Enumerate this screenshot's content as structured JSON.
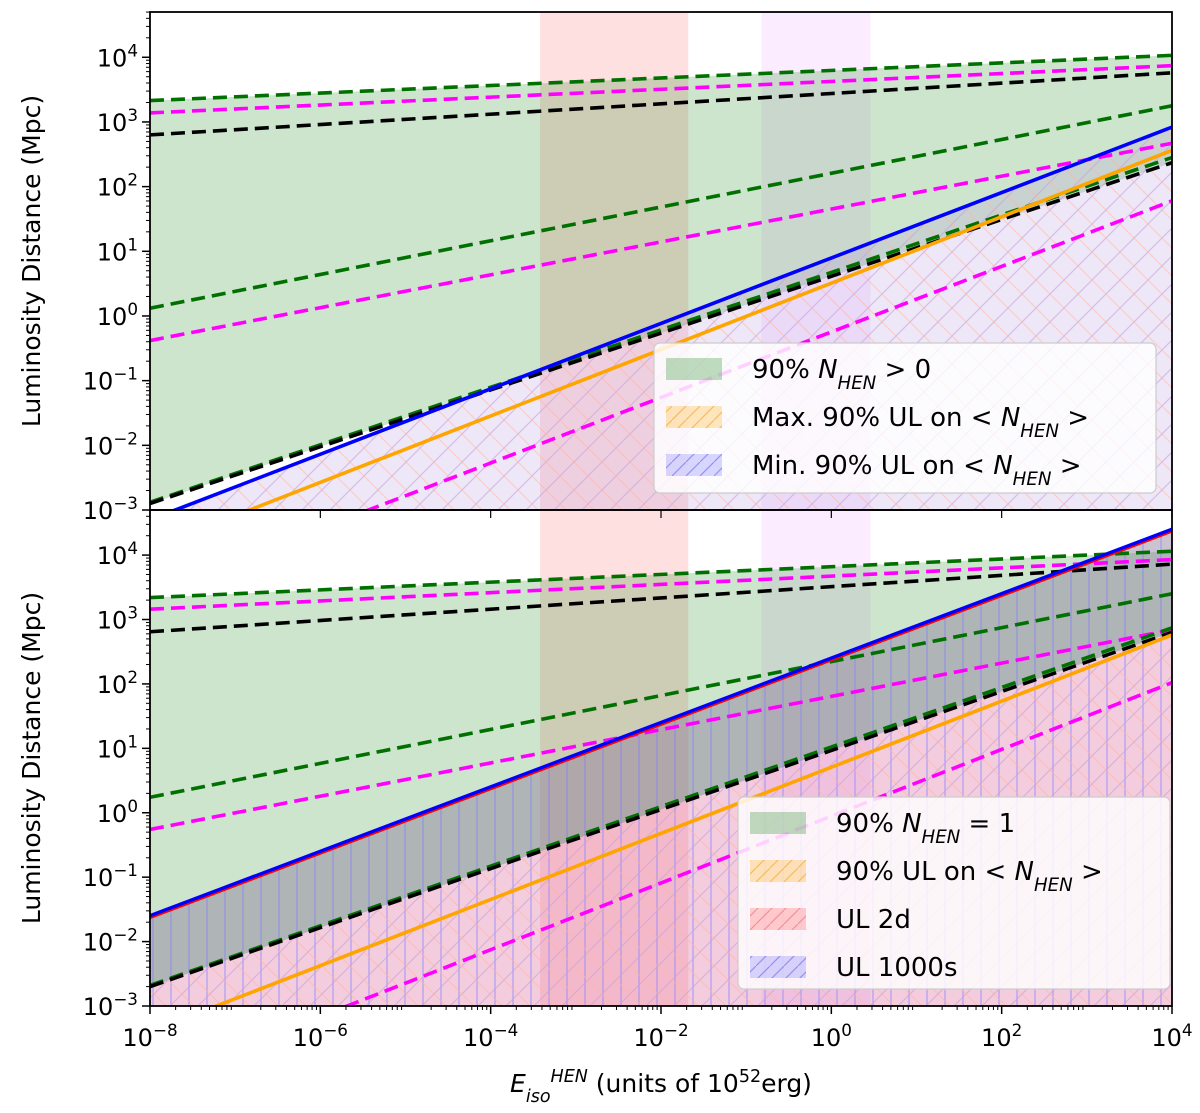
{
  "chart_data": {
    "type": "line",
    "shared": {
      "xlabel": {
        "main": "E",
        "sub": "iso",
        "sup": "HEN",
        "rest": " (units of 10",
        "rest_sup": "52",
        "rest_end": "erg)"
      },
      "xscale": "log",
      "xlim_exp": [
        -8,
        4
      ],
      "x_ticks": [
        {
          "exp": -8,
          "label": "10",
          "sup": "−8"
        },
        {
          "exp": -6,
          "label": "10",
          "sup": "−6"
        },
        {
          "exp": -4,
          "label": "10",
          "sup": "−4"
        },
        {
          "exp": -2,
          "label": "10",
          "sup": "−2"
        },
        {
          "exp": 0,
          "label": "10",
          "sup": "0"
        },
        {
          "exp": 2,
          "label": "10",
          "sup": "2"
        },
        {
          "exp": 4,
          "label": "10",
          "sup": "4"
        }
      ],
      "y_ticks": [
        {
          "exp": -3,
          "label": "10",
          "sup": "−3"
        },
        {
          "exp": -2,
          "label": "10",
          "sup": "−2"
        },
        {
          "exp": -1,
          "label": "10",
          "sup": "−1"
        },
        {
          "exp": 0,
          "label": "10",
          "sup": "0"
        },
        {
          "exp": 1,
          "label": "10",
          "sup": "1"
        },
        {
          "exp": 2,
          "label": "10",
          "sup": "2"
        },
        {
          "exp": 3,
          "label": "10",
          "sup": "3"
        },
        {
          "exp": 4,
          "label": "10",
          "sup": "4"
        }
      ],
      "ylabel": "Luminosity Distance (Mpc)",
      "yscale": "log",
      "ylim_exp": [
        -3,
        4.7
      ],
      "vertical_bands": [
        {
          "x_exp": [
            -3.42,
            -1.68
          ],
          "color": "#ff9999",
          "alpha": 0.3
        },
        {
          "x_exp": [
            -0.82,
            0.46
          ],
          "color": "#f0b8ff",
          "alpha": 0.25
        }
      ],
      "colors": {
        "green": "#007000",
        "magenta": "#ff00ff",
        "black": "#000000",
        "blue": "#0000ff",
        "orange": "#ffa500",
        "red": "#ff0000"
      }
    },
    "panels": [
      {
        "name": "top",
        "green_fill": {
          "lower": "black_upper",
          "upper": "green_upper"
        },
        "green_upper": {
          "from": 3.33,
          "to": 4.03
        },
        "dashed_series": [
          {
            "name": "green upper",
            "color": "green",
            "from": 3.33,
            "to": 4.03
          },
          {
            "name": "magenta upper",
            "color": "magenta",
            "from": 3.14,
            "to": 3.87
          },
          {
            "name": "black upper",
            "color": "black",
            "from": 2.8,
            "to": 3.76
          },
          {
            "name": "green middle",
            "color": "green",
            "from": 0.12,
            "to": 3.25
          },
          {
            "name": "magenta middle",
            "color": "magenta",
            "from": -0.38,
            "to": 2.67
          },
          {
            "name": "green lower",
            "color": "green",
            "from": -2.88,
            "to": 2.45
          },
          {
            "name": "black lower",
            "color": "black",
            "from": -2.9,
            "to": 2.37
          },
          {
            "name": "magenta lower",
            "color": "magenta",
            "from": -4.3,
            "to": 1.78
          }
        ],
        "solid_series": [
          {
            "name": "UL blue",
            "color": "blue",
            "from": -3.15,
            "to": 2.92
          },
          {
            "name": "UL orange",
            "color": "orange",
            "from": -3.6,
            "to": 2.56
          }
        ],
        "hatched_fills": [
          {
            "name": "min UL fill",
            "color": "blue",
            "top_from": -3.15,
            "top_to": 2.92,
            "alpha": 0.12
          },
          {
            "name": "max UL fill",
            "color": "orange",
            "top_from": -3.6,
            "top_to": 2.56,
            "alpha": 0.1
          }
        ],
        "pink_fill": {
          "top_from": -4.3,
          "top_to": 1.78
        },
        "legend": [
          {
            "label": "90% ",
            "math": "N",
            "sub": "HEN",
            "rest": " > 0",
            "color": "#4a9e4a",
            "alpha": 0.35,
            "hatch": false
          },
          {
            "label": "Max. 90% UL on ",
            "math": "< N",
            "sub": "HEN",
            "rest": " >",
            "color": "#ffa500",
            "alpha": 0.25,
            "hatch": true
          },
          {
            "label": "Min. 90% UL on ",
            "math": "< N",
            "sub": "HEN",
            "rest": " >",
            "color": "#6666ff",
            "alpha": 0.25,
            "hatch": true
          }
        ]
      },
      {
        "name": "bottom",
        "green_upper": {
          "from": 3.34,
          "to": 4.06
        },
        "dashed_series": [
          {
            "name": "green upper",
            "color": "green",
            "from": 3.34,
            "to": 4.06
          },
          {
            "name": "magenta upper",
            "color": "magenta",
            "from": 3.16,
            "to": 3.93
          },
          {
            "name": "black upper",
            "color": "black",
            "from": 2.81,
            "to": 3.86
          },
          {
            "name": "green middle",
            "color": "green",
            "from": 0.24,
            "to": 3.4
          },
          {
            "name": "magenta middle",
            "color": "magenta",
            "from": -0.26,
            "to": 2.84
          },
          {
            "name": "green lower",
            "color": "green",
            "from": -2.68,
            "to": 2.87
          },
          {
            "name": "black lower",
            "color": "black",
            "from": -2.7,
            "to": 2.8
          },
          {
            "name": "magenta lower",
            "color": "magenta",
            "from": -4.2,
            "to": 2.02
          }
        ],
        "solid_series": [
          {
            "name": "UL blue",
            "color": "blue",
            "from": -1.6,
            "to": 4.4
          },
          {
            "name": "UL red",
            "color": "red",
            "from": -1.64,
            "to": 4.36
          },
          {
            "name": "UL orange",
            "color": "orange",
            "from": -3.4,
            "to": 2.76
          }
        ],
        "legend": [
          {
            "label": "90% ",
            "math": "N",
            "sub": "HEN",
            "rest": " = 1",
            "color": "#4a9e4a",
            "alpha": 0.35,
            "hatch": false
          },
          {
            "label": "90% UL on ",
            "math": "< N",
            "sub": "HEN",
            "rest": " >",
            "color": "#ffa500",
            "alpha": 0.25,
            "hatch": true
          },
          {
            "label": "UL 2d",
            "math": "",
            "sub": "",
            "rest": "",
            "color": "#ff6666",
            "alpha": 0.3,
            "hatch": true
          },
          {
            "label": "UL 1000s",
            "math": "",
            "sub": "",
            "rest": "",
            "color": "#6666ff",
            "alpha": 0.25,
            "hatch": true
          }
        ]
      }
    ]
  }
}
